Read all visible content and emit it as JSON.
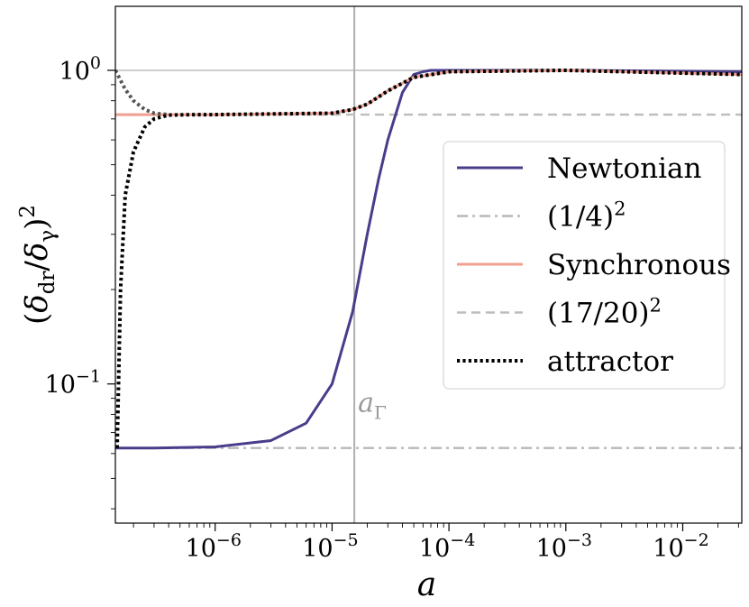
{
  "chart_data": {
    "type": "line",
    "title": "",
    "xlabel": "a",
    "ylabel": "(δdr/δγ)2",
    "xscale": "log",
    "yscale": "log",
    "xlim": [
      1.4e-07,
      0.032
    ],
    "ylim": [
      0.036,
      1.6
    ],
    "x_tick_labels": [
      {
        "base": "10",
        "exp": "−6",
        "value": 1e-06
      },
      {
        "base": "10",
        "exp": "−5",
        "value": 1e-05
      },
      {
        "base": "10",
        "exp": "−4",
        "value": 0.0001
      },
      {
        "base": "10",
        "exp": "−3",
        "value": 0.001
      },
      {
        "base": "10",
        "exp": "−2",
        "value": 0.01
      }
    ],
    "y_tick_labels": [
      {
        "base": "10",
        "exp": "0",
        "value": 1.0
      },
      {
        "base": "10",
        "exp": "−1",
        "value": 0.1
      }
    ],
    "annotation": {
      "text": "a",
      "sub": "Γ",
      "x": 1.55e-05,
      "y": 0.087
    },
    "reference_lines": [
      {
        "name": "a_Gamma",
        "orientation": "vertical",
        "value": 1.55e-05,
        "color": "#b0b0b0"
      },
      {
        "name": "unity",
        "orientation": "horizontal",
        "value": 1.0,
        "color": "#b0b0b0"
      }
    ],
    "series": [
      {
        "name": "Newtonian",
        "color": "#483d8b",
        "style": "solid",
        "x": [
          1.4e-07,
          3e-07,
          1e-06,
          3e-06,
          6e-06,
          1e-05,
          1.5e-05,
          2e-05,
          2.5e-05,
          3e-05,
          4e-05,
          5e-05,
          6e-05,
          7e-05,
          0.0001,
          0.001,
          0.032
        ],
        "y": [
          0.0625,
          0.0625,
          0.063,
          0.066,
          0.075,
          0.1,
          0.17,
          0.3,
          0.45,
          0.6,
          0.85,
          0.97,
          0.99,
          1.0,
          1.0,
          1.0,
          0.99
        ]
      },
      {
        "name": "(1/4)2",
        "label_base": "(1/4)",
        "label_exp": "2",
        "color": "#b8b8b8",
        "style": "dashdot",
        "x": [
          1.4e-07,
          0.032
        ],
        "y": [
          0.0625,
          0.0625
        ]
      },
      {
        "name": "Synchronous",
        "color": "#f0a090",
        "style": "solid",
        "x": [
          1.4e-07,
          1e-06,
          1e-05,
          1.5e-05,
          2e-05,
          3e-05,
          5e-05,
          0.0001,
          0.001,
          0.032
        ],
        "y": [
          0.7225,
          0.7225,
          0.73,
          0.75,
          0.78,
          0.86,
          0.95,
          0.99,
          1.0,
          0.97
        ]
      },
      {
        "name": "(17/20)2",
        "label_base": "(17/20)",
        "label_exp": "2",
        "color": "#bdbdbd",
        "style": "dashed",
        "x": [
          1.4e-07,
          0.032
        ],
        "y": [
          0.7225,
          0.7225
        ]
      },
      {
        "name": "attractor",
        "color": "#000000",
        "style": "dotted",
        "x": [
          1.45e-07,
          1.55e-07,
          1.7e-07,
          2e-07,
          2.5e-07,
          3e-07,
          4e-07,
          6e-07,
          1e-06,
          1e-05,
          1.5e-05,
          2e-05,
          3e-05,
          5e-05,
          0.0001,
          0.001,
          0.032
        ],
        "y": [
          0.0625,
          0.2,
          0.4,
          0.55,
          0.66,
          0.7,
          0.72,
          0.722,
          0.7225,
          0.73,
          0.75,
          0.78,
          0.86,
          0.95,
          0.99,
          1.0,
          0.97
        ]
      },
      {
        "name": "attractor-early",
        "color": "#555555",
        "style": "dotted",
        "in_legend": false,
        "x": [
          1.4e-07,
          1.7e-07,
          2e-07,
          2.5e-07,
          3e-07,
          4e-07
        ],
        "y": [
          1.0,
          0.87,
          0.8,
          0.75,
          0.73,
          0.722
        ]
      }
    ],
    "legend": {
      "position": "center-right",
      "entries": [
        {
          "series": "Newtonian",
          "label": "Newtonian"
        },
        {
          "series": "(1/4)2",
          "label": "(1/4)",
          "exp": "2"
        },
        {
          "series": "Synchronous",
          "label": "Synchronous"
        },
        {
          "series": "(17/20)2",
          "label": "(17/20)",
          "exp": "2"
        },
        {
          "series": "attractor",
          "label": "attractor"
        }
      ]
    }
  }
}
